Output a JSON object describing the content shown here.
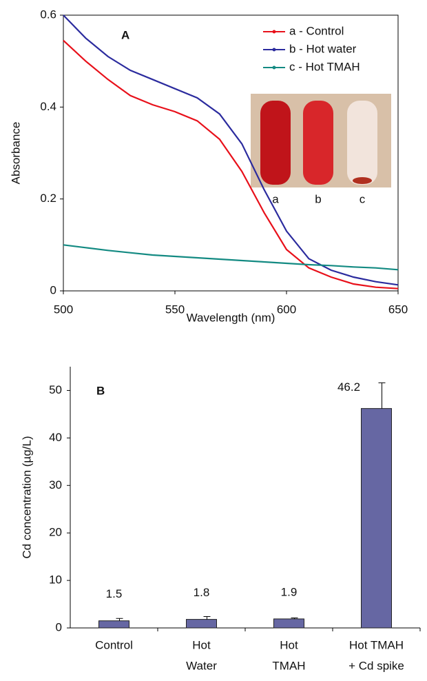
{
  "chart_data": [
    {
      "type": "line",
      "annotation": "A",
      "x_label": "Wavelength (nm)",
      "y_label": "Absorbance",
      "x": [
        500,
        510,
        520,
        530,
        540,
        550,
        560,
        570,
        580,
        590,
        600,
        610,
        620,
        630,
        640,
        650
      ],
      "series": [
        {
          "name": "a - Control",
          "color": "#e8101a",
          "values": [
            0.545,
            0.5,
            0.46,
            0.425,
            0.405,
            0.39,
            0.37,
            0.33,
            0.26,
            0.17,
            0.09,
            0.05,
            0.03,
            0.015,
            0.008,
            0.005
          ]
        },
        {
          "name": "b - Hot water",
          "color": "#2b2b9e",
          "values": [
            0.6,
            0.55,
            0.51,
            0.48,
            0.46,
            0.44,
            0.42,
            0.385,
            0.32,
            0.22,
            0.13,
            0.07,
            0.045,
            0.03,
            0.02,
            0.013
          ]
        },
        {
          "name": "c - Hot TMAH",
          "color": "#138a82",
          "values": [
            0.1,
            0.094,
            0.088,
            0.083,
            0.078,
            0.075,
            0.072,
            0.069,
            0.066,
            0.063,
            0.06,
            0.057,
            0.055,
            0.052,
            0.05,
            0.046
          ]
        }
      ],
      "xlim": [
        500,
        650
      ],
      "xticks": [
        500,
        550,
        600,
        650
      ],
      "ylim": [
        0,
        0.6
      ],
      "yticks": [
        0,
        0.2,
        0.4,
        0.6
      ],
      "inset_labels": [
        "a",
        "b",
        "c"
      ]
    },
    {
      "type": "bar",
      "annotation": "B",
      "y_label": "Cd concentration (µg/L)",
      "categories": [
        [
          "Control"
        ],
        [
          "Hot",
          "Water"
        ],
        [
          "Hot",
          "TMAH"
        ],
        [
          "Hot TMAH",
          "+ Cd spike"
        ]
      ],
      "values": [
        1.5,
        1.8,
        1.9,
        46.2
      ],
      "errors": [
        0.5,
        0.6,
        0.2,
        5.4
      ],
      "color": "#6667a3",
      "ylim": [
        0,
        55
      ],
      "yticks": [
        0,
        10,
        20,
        30,
        40,
        50
      ]
    }
  ]
}
